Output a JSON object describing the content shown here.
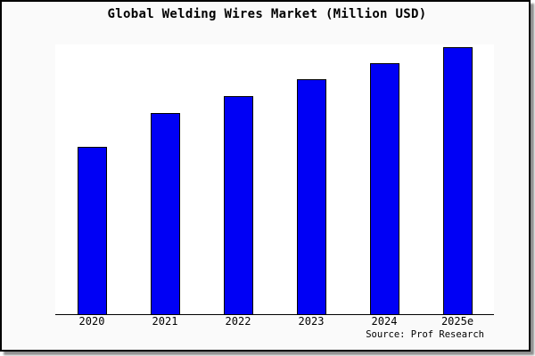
{
  "window": {
    "title": "Global Welding Wires Market (Million USD)"
  },
  "chart_data": {
    "type": "bar",
    "title": "Global Welding Wires Market (Million USD)",
    "categories": [
      "2020",
      "2021",
      "2022",
      "2023",
      "2024",
      "2025e"
    ],
    "values": [
      62,
      74.5,
      81,
      87,
      93,
      99
    ],
    "ylim": [
      0,
      100
    ],
    "value_note": "relative bar heights; no y-axis ticks or value labels shown",
    "xlabel": "",
    "ylabel": "",
    "grid": false,
    "legend": false,
    "source": "Source: Prof Research",
    "colors": {
      "bar_fill": "#0000f5",
      "bar_outline": "#000000",
      "plot_bg": "#ffffff",
      "frame_bg": "#fafafa",
      "axis": "#000000"
    }
  }
}
